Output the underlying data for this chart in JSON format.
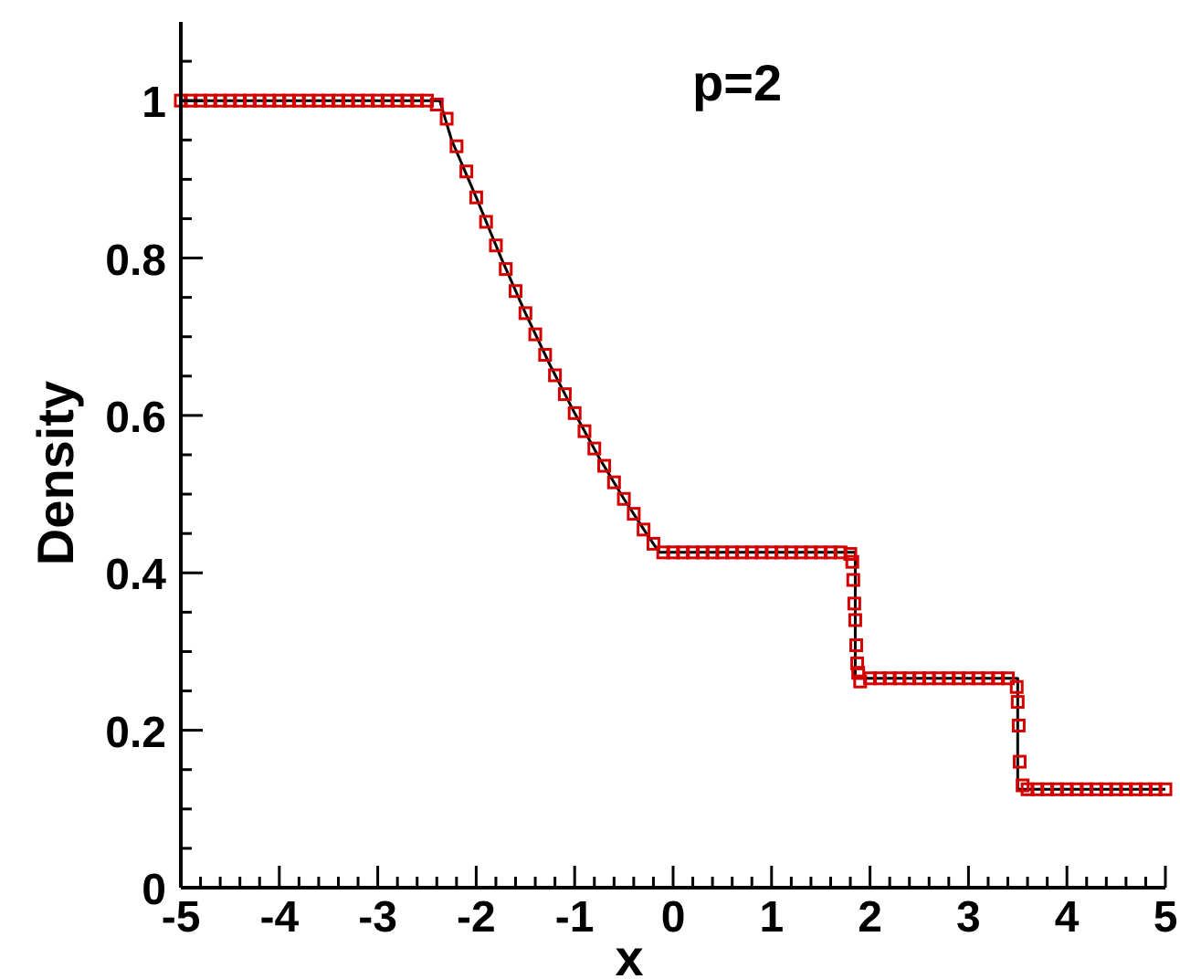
{
  "chart_data": {
    "type": "line",
    "title": "p=2",
    "xlabel": "x",
    "ylabel": "Density",
    "xlim": [
      -5,
      5
    ],
    "ylim": [
      0,
      1.1
    ],
    "xticks": [
      -5,
      {
        "value": -4.8,
        "label": null
      },
      {
        "value": -4.6,
        "label": null
      },
      {
        "value": -4.4,
        "label": null
      },
      {
        "value": -4.2,
        "label": null
      },
      -4,
      {
        "value": -3.8,
        "label": null
      },
      {
        "value": -3.6,
        "label": null
      },
      {
        "value": -3.4,
        "label": null
      },
      {
        "value": -3.2,
        "label": null
      },
      -3,
      {
        "value": -2.8,
        "label": null
      },
      {
        "value": -2.6,
        "label": null
      },
      {
        "value": -2.4,
        "label": null
      },
      {
        "value": -2.2,
        "label": null
      },
      -2,
      {
        "value": -1.8,
        "label": null
      },
      {
        "value": -1.6,
        "label": null
      },
      {
        "value": -1.4,
        "label": null
      },
      {
        "value": -1.2,
        "label": null
      },
      -1,
      {
        "value": -0.8,
        "label": null
      },
      {
        "value": -0.6,
        "label": null
      },
      {
        "value": -0.4,
        "label": null
      },
      {
        "value": -0.2,
        "label": null
      },
      0,
      {
        "value": 0.2,
        "label": null
      },
      {
        "value": 0.4,
        "label": null
      },
      {
        "value": 0.6,
        "label": null
      },
      {
        "value": 0.8,
        "label": null
      },
      1,
      {
        "value": 1.2,
        "label": null
      },
      {
        "value": 1.4,
        "label": null
      },
      {
        "value": 1.6,
        "label": null
      },
      {
        "value": 1.8,
        "label": null
      },
      2,
      {
        "value": 2.2,
        "label": null
      },
      {
        "value": 2.4,
        "label": null
      },
      {
        "value": 2.6,
        "label": null
      },
      {
        "value": 2.8,
        "label": null
      },
      3,
      {
        "value": 3.2,
        "label": null
      },
      {
        "value": 3.4,
        "label": null
      },
      {
        "value": 3.6,
        "label": null
      },
      {
        "value": 3.8,
        "label": null
      },
      4,
      {
        "value": 4.2,
        "label": null
      },
      {
        "value": 4.4,
        "label": null
      },
      {
        "value": 4.6,
        "label": null
      },
      {
        "value": 4.8,
        "label": null
      },
      5
    ],
    "yticks": [
      0,
      {
        "value": 0.05,
        "label": null
      },
      {
        "value": 0.1,
        "label": null
      },
      {
        "value": 0.15,
        "label": null
      },
      0.2,
      {
        "value": 0.25,
        "label": null
      },
      {
        "value": 0.3,
        "label": null
      },
      {
        "value": 0.35,
        "label": null
      },
      0.4,
      {
        "value": 0.45,
        "label": null
      },
      {
        "value": 0.5,
        "label": null
      },
      {
        "value": 0.55,
        "label": null
      },
      0.6,
      {
        "value": 0.65,
        "label": null
      },
      {
        "value": 0.7,
        "label": null
      },
      {
        "value": 0.75,
        "label": null
      },
      0.8,
      {
        "value": 0.85,
        "label": null
      },
      {
        "value": 0.9,
        "label": null
      },
      {
        "value": 0.95,
        "label": null
      },
      1,
      {
        "value": 1.05,
        "label": null
      }
    ],
    "grid": false,
    "series": [
      {
        "color": "#000000",
        "marker": "none",
        "line_style": "solid",
        "x": [
          -5,
          -2.37,
          -2.25,
          -2,
          -1.75,
          -1.5,
          -1.25,
          -1,
          -0.75,
          -0.5,
          -0.25,
          -0.14,
          1.85,
          1.85,
          3.5,
          3.5,
          5
        ],
        "values": [
          1,
          1,
          0.95,
          0.877,
          0.801,
          0.73,
          0.664,
          0.603,
          0.546,
          0.494,
          0.446,
          0.426,
          0.426,
          0.266,
          0.266,
          0.125,
          0.125
        ]
      },
      {
        "type": "scatter",
        "color": "#d40000",
        "marker": "square",
        "x": [
          -5,
          -4.9,
          -4.8,
          -4.7,
          -4.6,
          -4.5,
          -4.4,
          -4.3,
          -4.2,
          -4.1,
          -4,
          -3.9,
          -3.8,
          -3.7,
          -3.6,
          -3.5,
          -3.4,
          -3.3,
          -3.2,
          -3.1,
          -3,
          -2.9,
          -2.8,
          -2.7,
          -2.6,
          -2.5,
          -2.4,
          -2.3,
          -2.2,
          -2.1,
          -2,
          -1.9,
          -1.8,
          -1.7,
          -1.6,
          -1.5,
          -1.4,
          -1.3,
          -1.2,
          -1.1,
          -1,
          -0.9,
          -0.8,
          -0.7,
          -0.6,
          -0.5,
          -0.4,
          -0.3,
          -0.2,
          -0.1,
          0,
          0.1,
          0.2,
          0.3,
          0.4,
          0.5,
          0.6,
          0.7,
          0.8,
          0.9,
          1,
          1.1,
          1.2,
          1.3,
          1.4,
          1.5,
          1.6,
          1.7,
          1.8,
          1.82,
          1.83,
          1.84,
          1.85,
          1.86,
          1.87,
          1.88,
          1.9,
          2,
          2.1,
          2.2,
          2.3,
          2.4,
          2.5,
          2.6,
          2.7,
          2.8,
          2.9,
          3,
          3.1,
          3.2,
          3.3,
          3.4,
          3.49,
          3.5,
          3.51,
          3.52,
          3.55,
          3.6,
          3.7,
          3.8,
          3.9,
          4,
          4.1,
          4.2,
          4.3,
          4.4,
          4.5,
          4.6,
          4.7,
          4.8,
          4.9,
          5
        ],
        "values": [
          1,
          1,
          1,
          1,
          1,
          1,
          1,
          1,
          1,
          1,
          1,
          1,
          1,
          1,
          1,
          1,
          1,
          1,
          1,
          1,
          1,
          1,
          1,
          1,
          1,
          1,
          0.995,
          0.977,
          0.942,
          0.91,
          0.877,
          0.846,
          0.816,
          0.786,
          0.758,
          0.73,
          0.703,
          0.677,
          0.651,
          0.627,
          0.603,
          0.58,
          0.558,
          0.536,
          0.515,
          0.494,
          0.475,
          0.455,
          0.437,
          0.426,
          0.426,
          0.426,
          0.426,
          0.426,
          0.426,
          0.426,
          0.426,
          0.426,
          0.426,
          0.426,
          0.426,
          0.426,
          0.426,
          0.426,
          0.426,
          0.426,
          0.426,
          0.426,
          0.424,
          0.414,
          0.391,
          0.361,
          0.34,
          0.308,
          0.285,
          0.273,
          0.262,
          0.266,
          0.266,
          0.266,
          0.266,
          0.266,
          0.266,
          0.266,
          0.266,
          0.266,
          0.266,
          0.266,
          0.266,
          0.266,
          0.266,
          0.266,
          0.255,
          0.236,
          0.206,
          0.16,
          0.13,
          0.125,
          0.125,
          0.125,
          0.125,
          0.125,
          0.125,
          0.125,
          0.125,
          0.125,
          0.125,
          0.125,
          0.125,
          0.125,
          0.125,
          0.125
        ]
      }
    ]
  }
}
